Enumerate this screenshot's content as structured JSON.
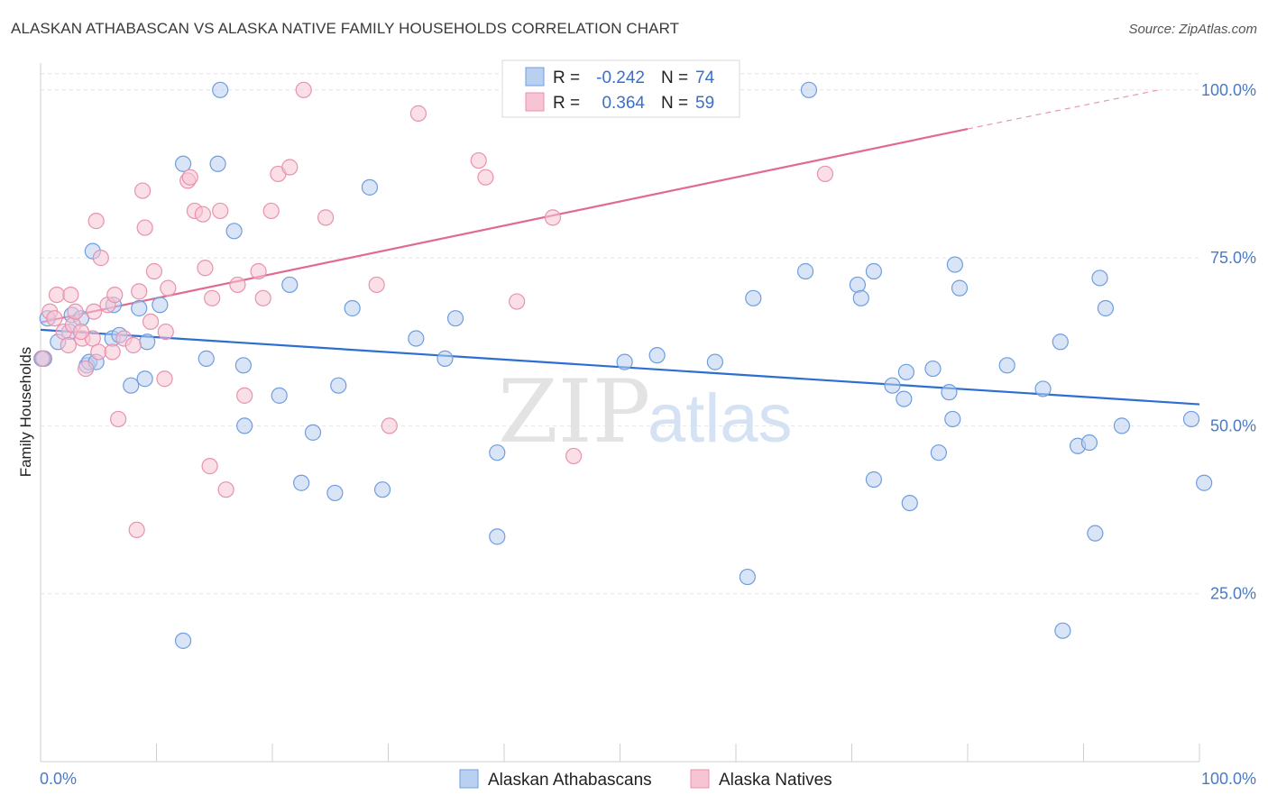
{
  "title": "ALASKAN ATHABASCAN VS ALASKA NATIVE FAMILY HOUSEHOLDS CORRELATION CHART",
  "source": "Source: ZipAtlas.com",
  "watermark": {
    "zip": "ZIP",
    "atlas": "atlas"
  },
  "legend": {
    "r_label": "R =",
    "n_label": "N =",
    "rows": [
      {
        "r": "-0.242",
        "n": "74"
      },
      {
        "r": "0.364",
        "n": "59"
      }
    ]
  },
  "chart_data": {
    "type": "scatter",
    "xlabel": "",
    "ylabel": "Family Households",
    "xlim": [
      0,
      100
    ],
    "ylim": [
      0,
      104
    ],
    "x_tick_labels": [
      "0.0%",
      "100.0%"
    ],
    "y_ticks": [
      25,
      50,
      75,
      100
    ],
    "y_tick_labels": [
      "25.0%",
      "50.0%",
      "75.0%",
      "100.0%"
    ],
    "grid": true,
    "legend_position": "top-center",
    "series": [
      {
        "name": "Alaskan Athabascans",
        "color": "#6e9de0",
        "fill": "#b9d0f1",
        "trend": {
          "x0": 0,
          "y0": 64.3,
          "x1": 100,
          "y1": 53.2,
          "color": "#2c6fd0"
        },
        "points": [
          [
            0.3,
            60.0
          ],
          [
            0.6,
            66.0
          ],
          [
            1.5,
            62.5
          ],
          [
            2.5,
            64.0
          ],
          [
            2.7,
            66.5
          ],
          [
            3.5,
            66.0
          ],
          [
            4.0,
            59.0
          ],
          [
            4.2,
            59.5
          ],
          [
            4.8,
            59.5
          ],
          [
            4.5,
            76.0
          ],
          [
            6.2,
            63.0
          ],
          [
            6.3,
            68.0
          ],
          [
            6.8,
            63.5
          ],
          [
            7.8,
            56.0
          ],
          [
            8.5,
            67.5
          ],
          [
            9.0,
            57.0
          ],
          [
            9.2,
            62.5
          ],
          [
            10.3,
            68.0
          ],
          [
            12.3,
            18.0
          ],
          [
            12.3,
            89.0
          ],
          [
            14.3,
            60.0
          ],
          [
            15.3,
            89.0
          ],
          [
            15.5,
            100.0
          ],
          [
            16.7,
            79.0
          ],
          [
            17.5,
            59.0
          ],
          [
            17.6,
            50.0
          ],
          [
            20.6,
            54.5
          ],
          [
            21.5,
            71.0
          ],
          [
            22.5,
            41.5
          ],
          [
            23.5,
            49.0
          ],
          [
            25.4,
            40.0
          ],
          [
            25.7,
            56.0
          ],
          [
            26.9,
            67.5
          ],
          [
            28.4,
            85.5
          ],
          [
            29.5,
            40.5
          ],
          [
            32.4,
            63.0
          ],
          [
            34.9,
            60.0
          ],
          [
            35.8,
            66.0
          ],
          [
            39.4,
            46.0
          ],
          [
            39.4,
            33.5
          ],
          [
            50.4,
            59.5
          ],
          [
            53.2,
            60.5
          ],
          [
            58.2,
            59.5
          ],
          [
            61.0,
            27.5
          ],
          [
            61.5,
            69.0
          ],
          [
            66.0,
            73.0
          ],
          [
            66.3,
            100.0
          ],
          [
            70.5,
            71.0
          ],
          [
            70.8,
            69.0
          ],
          [
            71.9,
            73.0
          ],
          [
            71.9,
            42.0
          ],
          [
            73.5,
            56.0
          ],
          [
            74.5,
            54.0
          ],
          [
            74.7,
            58.0
          ],
          [
            75.0,
            38.5
          ],
          [
            77.0,
            58.5
          ],
          [
            77.5,
            46.0
          ],
          [
            78.4,
            55.0
          ],
          [
            78.7,
            51.0
          ],
          [
            78.9,
            74.0
          ],
          [
            79.3,
            70.5
          ],
          [
            83.4,
            59.0
          ],
          [
            86.5,
            55.5
          ],
          [
            88.0,
            62.5
          ],
          [
            88.2,
            19.5
          ],
          [
            89.5,
            47.0
          ],
          [
            90.5,
            47.5
          ],
          [
            91.0,
            34.0
          ],
          [
            91.4,
            72.0
          ],
          [
            91.9,
            67.5
          ],
          [
            93.3,
            50.0
          ],
          [
            99.3,
            51.0
          ],
          [
            100.4,
            41.5
          ],
          [
            0.1,
            60.0
          ]
        ]
      },
      {
        "name": "Alaska Natives",
        "color": "#e892ad",
        "fill": "#f7c4d3",
        "trend": {
          "x0": 0,
          "y0": 65.4,
          "x1": 80.0,
          "y1": 94.2,
          "color": "#e06a93",
          "dash_x1": 96.5,
          "dash_y1": 100.0
        },
        "points": [
          [
            0.2,
            60.0
          ],
          [
            0.8,
            67.0
          ],
          [
            1.2,
            66.0
          ],
          [
            1.4,
            69.5
          ],
          [
            2.0,
            64.0
          ],
          [
            2.4,
            62.0
          ],
          [
            2.6,
            69.5
          ],
          [
            2.8,
            65.0
          ],
          [
            3.0,
            67.0
          ],
          [
            3.6,
            63.0
          ],
          [
            3.9,
            58.5
          ],
          [
            4.5,
            63.0
          ],
          [
            4.6,
            67.0
          ],
          [
            5.0,
            61.0
          ],
          [
            4.8,
            80.5
          ],
          [
            5.2,
            75.0
          ],
          [
            5.8,
            68.0
          ],
          [
            6.2,
            61.0
          ],
          [
            6.4,
            69.5
          ],
          [
            6.7,
            51.0
          ],
          [
            7.2,
            63.0
          ],
          [
            8.0,
            62.0
          ],
          [
            8.3,
            34.5
          ],
          [
            8.5,
            70.0
          ],
          [
            8.8,
            85.0
          ],
          [
            9.0,
            79.5
          ],
          [
            9.5,
            65.5
          ],
          [
            9.8,
            73.0
          ],
          [
            10.7,
            57.0
          ],
          [
            10.8,
            64.0
          ],
          [
            11.0,
            70.5
          ],
          [
            12.7,
            86.5
          ],
          [
            12.9,
            87.0
          ],
          [
            13.3,
            82.0
          ],
          [
            14.0,
            81.5
          ],
          [
            14.2,
            73.5
          ],
          [
            14.6,
            44.0
          ],
          [
            14.8,
            69.0
          ],
          [
            15.5,
            82.0
          ],
          [
            16.0,
            40.5
          ],
          [
            17.0,
            71.0
          ],
          [
            17.6,
            54.5
          ],
          [
            18.8,
            73.0
          ],
          [
            19.2,
            69.0
          ],
          [
            19.9,
            82.0
          ],
          [
            20.5,
            87.5
          ],
          [
            21.5,
            88.5
          ],
          [
            22.7,
            100.0
          ],
          [
            24.6,
            81.0
          ],
          [
            29.0,
            71.0
          ],
          [
            30.1,
            50.0
          ],
          [
            32.6,
            96.5
          ],
          [
            37.8,
            89.5
          ],
          [
            38.4,
            87.0
          ],
          [
            41.1,
            68.5
          ],
          [
            44.2,
            81.0
          ],
          [
            46.0,
            45.5
          ],
          [
            67.7,
            87.5
          ],
          [
            3.5,
            64.0
          ]
        ]
      }
    ]
  }
}
